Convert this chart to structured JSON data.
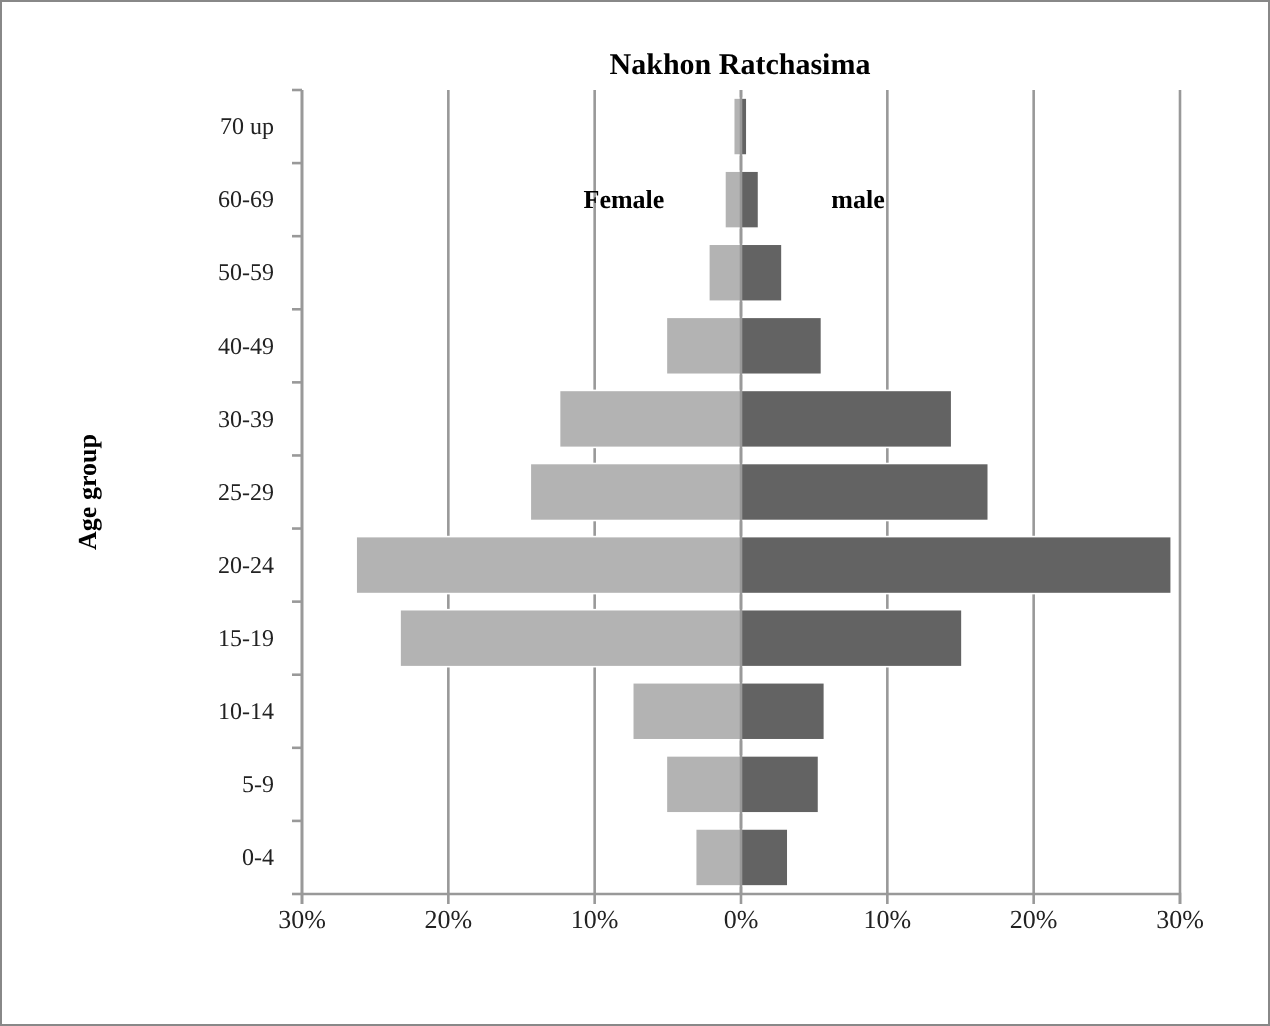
{
  "chart_data": {
    "type": "bar",
    "orientation": "horizontal",
    "title": "Nakhon Ratchasima",
    "ylabel": "Age group",
    "categories": [
      "70 up",
      "60-69",
      "50-59",
      "40-49",
      "30-39",
      "25-29",
      "20-24",
      "15-19",
      "10-14",
      "5-9",
      "0-4"
    ],
    "series": [
      {
        "name": "Female",
        "color": "#b3b3b3",
        "values": [
          -0.5,
          -1.1,
          -2.2,
          -5.1,
          -12.4,
          -14.4,
          -26.3,
          -23.3,
          -7.4,
          -5.1,
          -3.1
        ]
      },
      {
        "name": "male",
        "color": "#636363",
        "values": [
          0.4,
          1.2,
          2.8,
          5.5,
          14.4,
          16.9,
          29.4,
          15.1,
          5.7,
          5.3,
          3.2
        ]
      }
    ],
    "xlim": [
      -30,
      30
    ],
    "xticks": [
      {
        "value": -30,
        "label": "30%"
      },
      {
        "value": -20,
        "label": "20%"
      },
      {
        "value": -10,
        "label": "10%"
      },
      {
        "value": 0,
        "label": "0%"
      },
      {
        "value": 10,
        "label": "10%"
      },
      {
        "value": 20,
        "label": "20%"
      },
      {
        "value": 30,
        "label": "30%"
      }
    ],
    "stacked": true,
    "grid": "x"
  }
}
